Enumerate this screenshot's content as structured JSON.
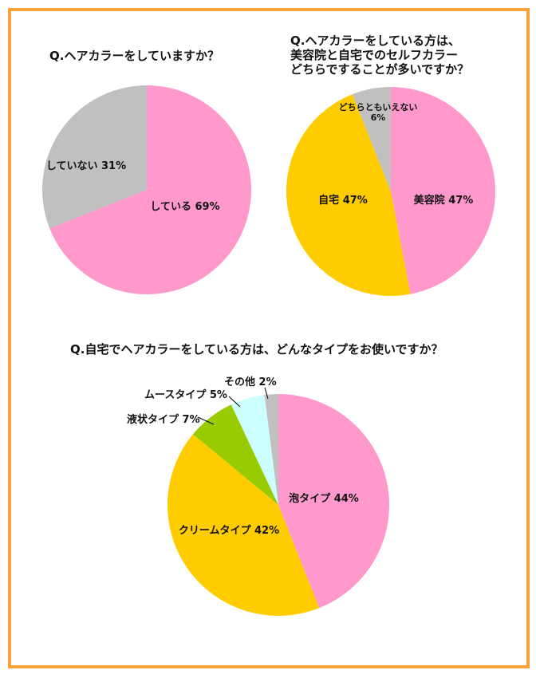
{
  "chart_data": [
    {
      "type": "pie",
      "title": "Q.ヘアカラーをしていますか？",
      "slices": [
        {
          "label": "している",
          "value": 69,
          "display": "している 69%",
          "color": "#ff99cc"
        },
        {
          "label": "していない",
          "value": 31,
          "display": "していない 31%",
          "color": "#c0c0c0"
        }
      ]
    },
    {
      "type": "pie",
      "title": [
        "Q.ヘアカラーをしている方は、",
        "美容院と自宅でのセルフカラー",
        "どちらですることが多いですか？"
      ],
      "slices": [
        {
          "label": "美容院",
          "value": 47,
          "display": "美容院 47%",
          "color": "#ff99cc"
        },
        {
          "label": "自宅",
          "value": 47,
          "display": "自宅 47%",
          "color": "#ffcc00"
        },
        {
          "label": "どちらともいえない",
          "value": 6,
          "display": [
            "どちらともいえない",
            "6%"
          ],
          "color": "#c0c0c0"
        }
      ]
    },
    {
      "type": "pie",
      "title": "Q.自宅でヘアカラーをしている方は、どんなタイプをお使いですか？",
      "slices": [
        {
          "label": "泡タイプ",
          "value": 44,
          "display": "泡タイプ 44%",
          "color": "#ff99cc"
        },
        {
          "label": "クリームタイプ",
          "value": 42,
          "display": "クリームタイプ 42%",
          "color": "#ffcc00"
        },
        {
          "label": "液状タイプ",
          "value": 7,
          "display": "液状タイプ 7%",
          "color": "#99cc00"
        },
        {
          "label": "ムースタイプ",
          "value": 5,
          "display": "ムースタイプ 5%",
          "color": "#ccffff"
        },
        {
          "label": "その他",
          "value": 2,
          "display": "その他 2%",
          "color": "#c0c0c0"
        }
      ]
    }
  ],
  "colors": {
    "border": "#f7a23a"
  }
}
